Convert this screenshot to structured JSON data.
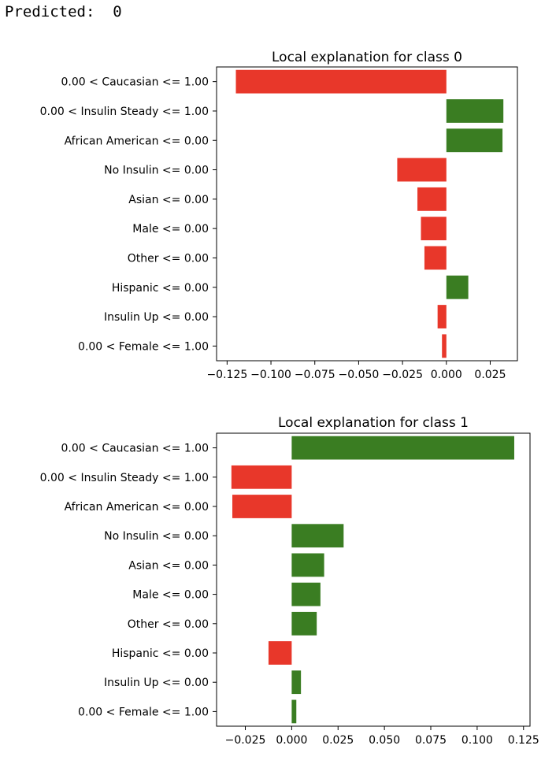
{
  "header": {
    "predicted_label": "Predicted:",
    "predicted_value": "0"
  },
  "colors": {
    "positive": "#3a7d22",
    "negative": "#e8372a"
  },
  "chart_data": [
    {
      "type": "bar",
      "orientation": "horizontal",
      "title": "Local explanation for class 0",
      "categories": [
        "0.00 < Caucasian <= 1.00",
        "0.00 < Insulin Steady <= 1.00",
        "African American <= 0.00",
        "No Insulin <= 0.00",
        "Asian <= 0.00",
        "Male <= 0.00",
        "Other <= 0.00",
        "Hispanic <= 0.00",
        "Insulin Up <= 0.00",
        "0.00 < Female <= 1.00"
      ],
      "values": [
        -0.12,
        0.0325,
        0.032,
        -0.028,
        -0.0165,
        -0.0145,
        -0.0125,
        0.0125,
        -0.005,
        -0.0025
      ],
      "xlim": [
        -0.131,
        0.0405
      ],
      "xticks": [
        -0.125,
        -0.1,
        -0.075,
        -0.05,
        -0.025,
        0.0,
        0.025
      ],
      "xtick_labels": [
        "−0.125",
        "−0.100",
        "−0.075",
        "−0.050",
        "−0.025",
        "0.000",
        "0.025"
      ],
      "grid": false
    },
    {
      "type": "bar",
      "orientation": "horizontal",
      "title": "Local explanation for class 1",
      "categories": [
        "0.00 < Caucasian <= 1.00",
        "0.00 < Insulin Steady <= 1.00",
        "African American <= 0.00",
        "No Insulin <= 0.00",
        "Asian <= 0.00",
        "Male <= 0.00",
        "Other <= 0.00",
        "Hispanic <= 0.00",
        "Insulin Up <= 0.00",
        "0.00 < Female <= 1.00"
      ],
      "values": [
        0.12,
        -0.0325,
        -0.032,
        0.028,
        0.0175,
        0.0155,
        0.0135,
        -0.0125,
        0.005,
        0.0025
      ],
      "xlim": [
        -0.0405,
        0.1285
      ],
      "xticks": [
        -0.025,
        0.0,
        0.025,
        0.05,
        0.075,
        0.1,
        0.125
      ],
      "xtick_labels": [
        "−0.025",
        "0.000",
        "0.025",
        "0.050",
        "0.075",
        "0.100",
        "0.125"
      ],
      "grid": false
    }
  ]
}
